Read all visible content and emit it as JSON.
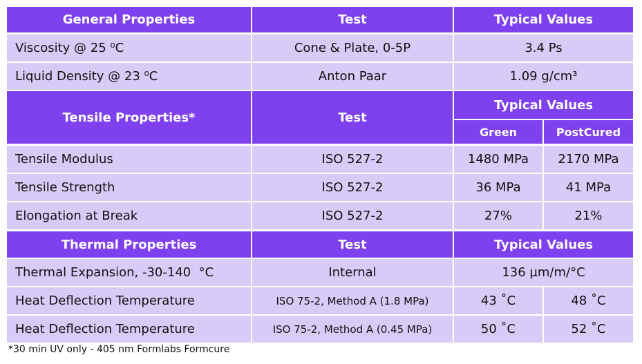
{
  "table": {
    "sections": [
      {
        "header": [
          "General Properties",
          "Test",
          "Typical Values"
        ],
        "rows": [
          [
            "Viscosity @ 25 ⁰C",
            "Cone & Plate, 0-5P",
            "3.4 Ps"
          ],
          [
            "Liquid Density @ 23 ⁰C",
            "Anton Paar",
            "1.09 g/cm³"
          ]
        ]
      },
      {
        "header": [
          "Tensile Properties*",
          "Test",
          "Typical Values"
        ],
        "subheader": [
          "Green",
          "PostCured"
        ],
        "rows": [
          [
            "Tensile Modulus",
            "ISO 527-2",
            "1480 MPa",
            "2170 MPa"
          ],
          [
            "Tensile Strength",
            "ISO 527-2",
            "36 MPa",
            "41 MPa"
          ],
          [
            "Elongation at Break",
            "ISO 527-2",
            "27%",
            "21%"
          ]
        ]
      },
      {
        "header": [
          "Thermal Properties",
          "Test",
          "Typical Values"
        ],
        "rows": [
          [
            "Thermal Expansion, -30-140  °C",
            "Internal",
            "136 µm/m/°C"
          ],
          [
            "Heat Deflection Temperature",
            "ISO 75-2, Method A (1.8 MPa)",
            "43 ˚C",
            "48 ˚C"
          ],
          [
            "Heat Deflection Temperature",
            "ISO 75-2, Method A (0.45 MPa)",
            "50 ˚C",
            "52 ˚C"
          ]
        ]
      }
    ],
    "footnote": "*30 min UV only - 405 nm Formlabs Formcure"
  }
}
